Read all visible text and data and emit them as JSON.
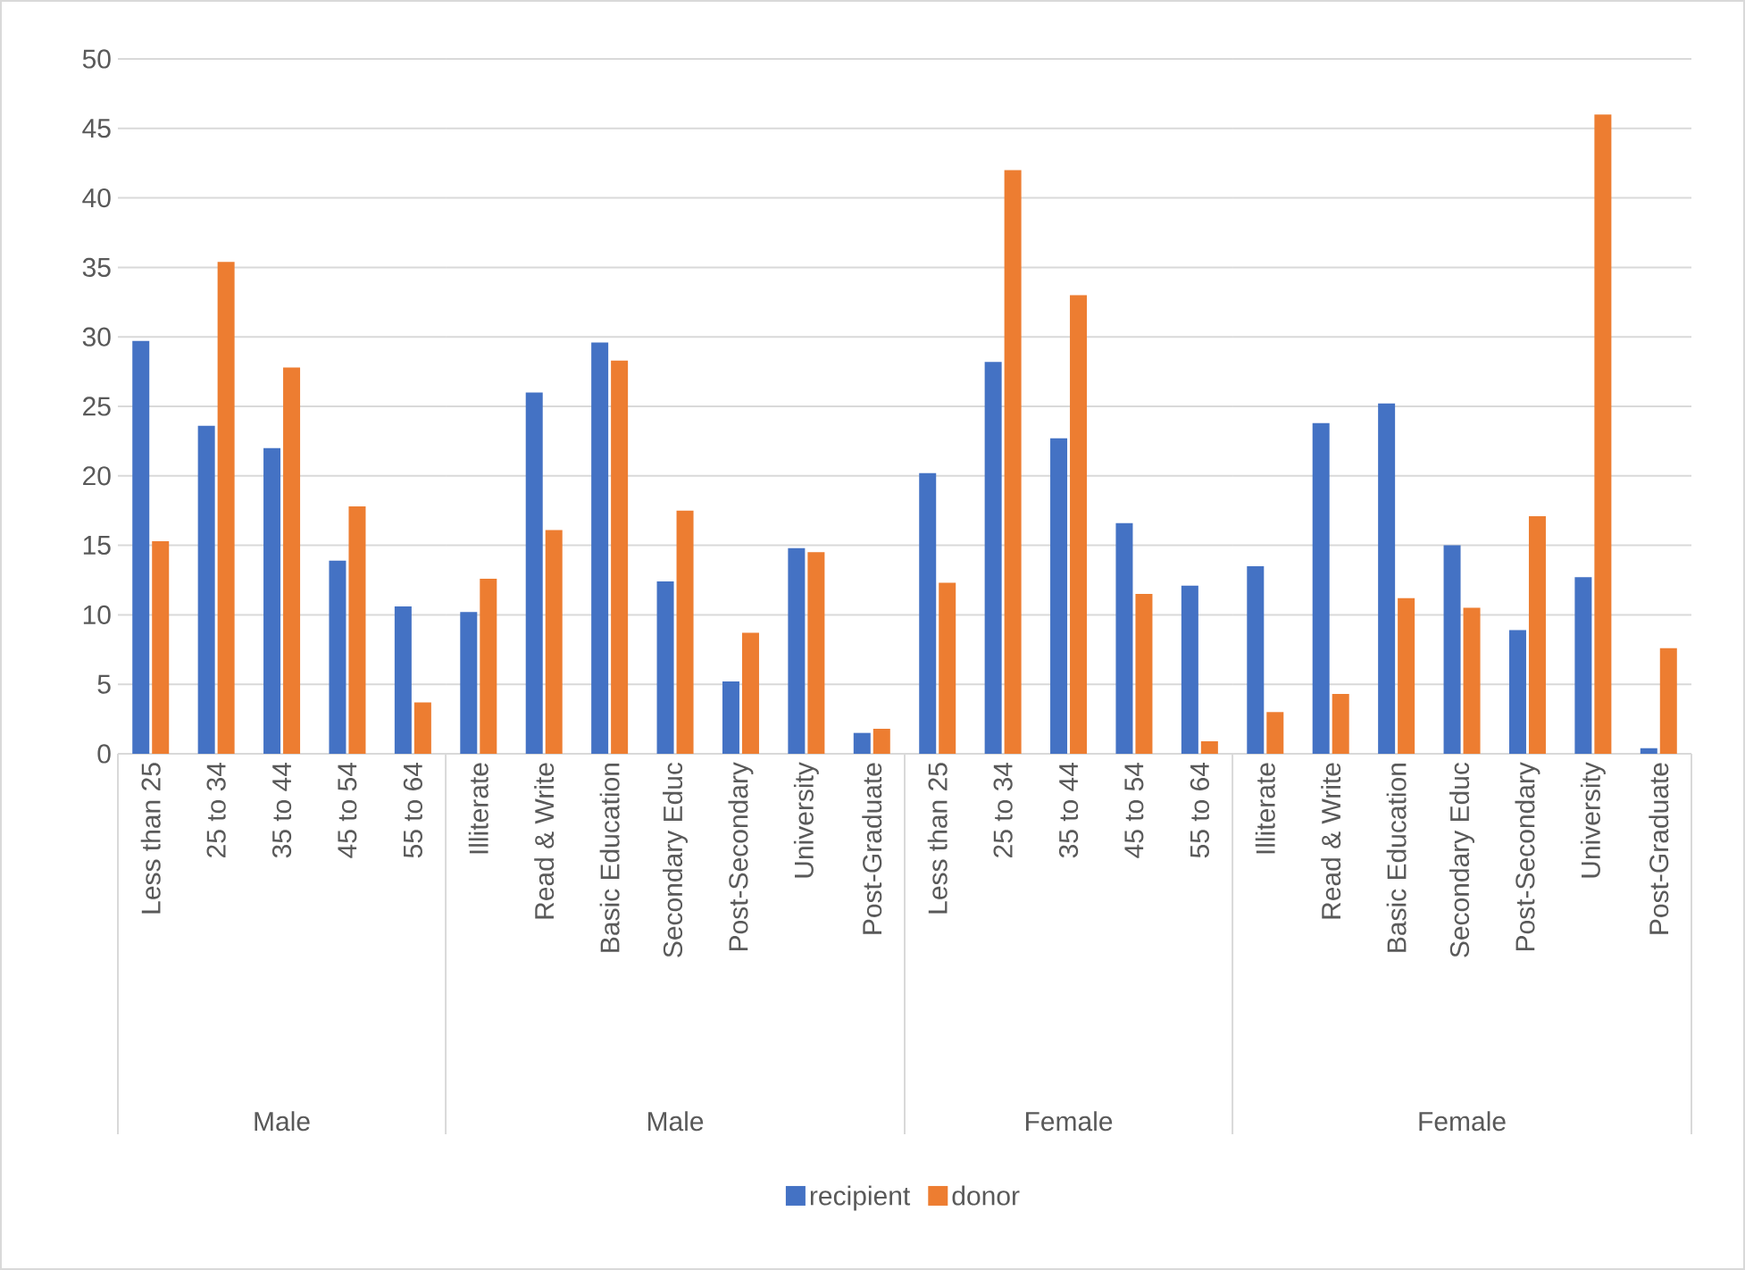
{
  "chart_data": [
    {
      "type": "bar",
      "xlabel": "Male",
      "categories": [
        "Less than 25",
        "25 to 34",
        "35 to 44",
        "45 to 54",
        "55 to 64"
      ],
      "ylim": [
        0,
        50
      ],
      "yticks": [
        0,
        5,
        10,
        15,
        20,
        25,
        30,
        35,
        40,
        45,
        50
      ],
      "grid": "y",
      "legend": "bottom",
      "series": [
        {
          "name": "recipient",
          "color": "#4472c4",
          "values": [
            29.7,
            23.6,
            22.0,
            13.9,
            10.6
          ]
        },
        {
          "name": "donor",
          "color": "#ed7d31",
          "values": [
            15.3,
            35.4,
            27.8,
            17.8,
            3.7
          ]
        }
      ]
    },
    {
      "type": "bar",
      "xlabel": "Male",
      "categories": [
        "Illiterate",
        "Read & Write",
        "Basic Education",
        "Secondary Educ",
        "Post-Secondary",
        "University",
        "Post-Graduate"
      ],
      "ylim": [
        0,
        50
      ],
      "yticks": [
        0,
        5,
        10,
        15,
        20,
        25,
        30,
        35,
        40,
        45,
        50
      ],
      "grid": "y",
      "tick_labels": "x",
      "series": [
        {
          "color": "#4472c4",
          "values": [
            10.2,
            26.0,
            29.6,
            12.4,
            5.2,
            14.8,
            1.5
          ]
        },
        {
          "color": "#ed7d31",
          "values": [
            12.6,
            16.1,
            28.3,
            17.5,
            8.7,
            14.5,
            1.8
          ]
        }
      ]
    },
    {
      "type": "bar",
      "xlabel": "Female",
      "categories": [
        "Less than 25",
        "25 to 34",
        "35 to 44",
        "45 to 54",
        "55 to 64"
      ],
      "ylim": [
        0,
        50
      ],
      "yticks": [
        0,
        5,
        10,
        15,
        20,
        25,
        30,
        35,
        40,
        45,
        50
      ],
      "grid": "y",
      "tick_labels": "x",
      "series": [
        {
          "color": "#4472c4",
          "values": [
            20.2,
            28.2,
            22.7,
            16.6,
            12.1
          ]
        },
        {
          "color": "#ed7d31",
          "values": [
            12.3,
            42.0,
            33.0,
            11.5,
            0.9
          ]
        }
      ]
    },
    {
      "type": "bar",
      "xlabel": "Female",
      "categories": [
        "Illiterate",
        "Read & Write",
        "Basic Education",
        "Secondary Educ",
        "Post-Secondary",
        "University",
        "Post-Graduate"
      ],
      "ylim": [
        0,
        50
      ],
      "yticks": [
        0,
        5,
        10,
        15,
        20,
        25,
        30,
        35,
        40,
        45,
        50
      ],
      "grid": "y",
      "tick_labels": "x",
      "series": [
        {
          "color": "#4472c4",
          "values": [
            13.5,
            23.8,
            25.2,
            15.0,
            8.9,
            12.7,
            0.4
          ]
        },
        {
          "color": "#ed7d31",
          "values": [
            3.0,
            4.3,
            11.2,
            10.5,
            17.1,
            46.0,
            7.6
          ]
        }
      ]
    }
  ]
}
